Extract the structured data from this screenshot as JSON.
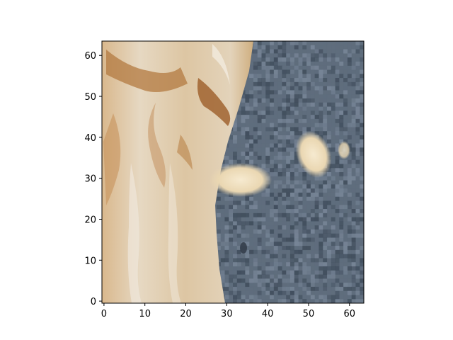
{
  "image": {
    "description_free": true,
    "pixel_grid": [
      64,
      64
    ],
    "colors": {
      "fabric_light": "#e7dccb",
      "fabric_mid": "#d8c3a0",
      "fabric_tan": "#c79a63",
      "fabric_brown": "#a8692f",
      "stone_base": "#5f6d7d",
      "stone_dark": "#3d4a59",
      "stone_light": "#7a889a",
      "blob_cream": "#f0e2c2",
      "axis": "#000000"
    }
  },
  "chart_data": {
    "type": "heatmap",
    "xlim": [
      -0.5,
      63.5
    ],
    "ylim": [
      63.5,
      -0.5
    ],
    "x_ticks": [
      0,
      10,
      20,
      30,
      40,
      50,
      60
    ],
    "y_ticks": [
      0,
      10,
      20,
      30,
      40,
      50,
      60
    ],
    "x_tick_labels": [
      "0",
      "10",
      "20",
      "30",
      "40",
      "50",
      "60"
    ],
    "y_tick_labels": [
      "0",
      "10",
      "20",
      "30",
      "40",
      "50",
      "60"
    ],
    "title": "",
    "xlabel": "",
    "ylabel": "",
    "grid": false
  }
}
